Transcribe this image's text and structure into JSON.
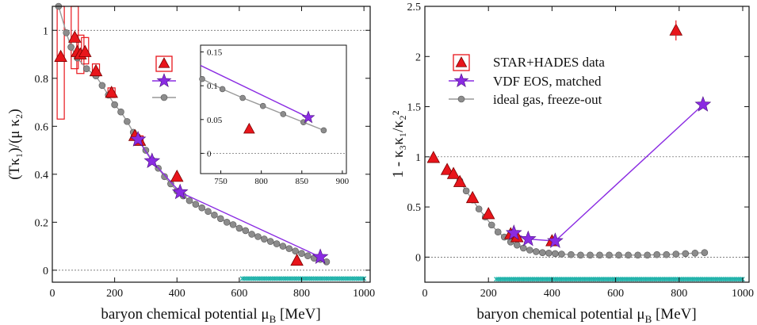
{
  "chart_data": [
    {
      "type": "scatter",
      "panel": "left",
      "xlabel_main": "baryon chemical potential μ",
      "xlabel_sub": "B",
      "xlabel_tail": " [MeV]",
      "ylabel": "(Tκ₁)/(μ κ₂)",
      "xlim": [
        0,
        1020
      ],
      "ylim": [
        -0.05,
        1.1
      ],
      "xticks": [
        0,
        200,
        400,
        600,
        800,
        1000
      ],
      "yticks": [
        0,
        0.2,
        0.4,
        0.6,
        0.8,
        1
      ],
      "ytick_labels": [
        "0",
        "0.2",
        "0.4",
        "0.6",
        "0.8",
        "1"
      ],
      "reference_lines": [
        0,
        1
      ],
      "legend": {
        "placement": "upper-middle",
        "labels_printed": false
      },
      "series": [
        {
          "role": "data",
          "marker": "triangle",
          "color": "#e8151b",
          "points": [
            [
              27,
              0.89
            ],
            [
              72,
              0.97
            ],
            [
              80,
              0.91
            ],
            [
              90,
              0.9
            ],
            [
              105,
              0.91
            ],
            [
              140,
              0.83
            ],
            [
              190,
              0.74
            ],
            [
              265,
              0.56
            ],
            [
              280,
              0.54
            ],
            [
              400,
              0.39
            ],
            [
              785,
              0.04
            ]
          ],
          "sys_boxes": [
            [
              27,
              0.63,
              1.1
            ],
            [
              72,
              0.84,
              1.1
            ],
            [
              90,
              0.82,
              0.98
            ],
            [
              105,
              0.86,
              0.97
            ],
            [
              140,
              0.81,
              0.86
            ],
            [
              190,
              0.72,
              0.76
            ],
            [
              265,
              0.55,
              0.57
            ],
            [
              280,
              0.53,
              0.56
            ]
          ]
        },
        {
          "role": "model",
          "marker": "star",
          "color": "#8a2be2",
          "points": [
            [
              275,
              0.545
            ],
            [
              320,
              0.455
            ],
            [
              410,
              0.325
            ],
            [
              860,
              0.055
            ]
          ]
        },
        {
          "role": "curve",
          "marker": "circle",
          "color": "#8c8c8c",
          "points": [
            [
              20,
              1.1
            ],
            [
              45,
              0.99
            ],
            [
              60,
              0.93
            ],
            [
              80,
              0.885
            ],
            [
              110,
              0.84
            ],
            [
              140,
              0.81
            ],
            [
              160,
              0.77
            ],
            [
              180,
              0.73
            ],
            [
              200,
              0.69
            ],
            [
              220,
              0.66
            ],
            [
              240,
              0.62
            ],
            [
              260,
              0.575
            ],
            [
              280,
              0.535
            ],
            [
              300,
              0.5
            ],
            [
              320,
              0.46
            ],
            [
              340,
              0.425
            ],
            [
              360,
              0.39
            ],
            [
              380,
              0.36
            ],
            [
              400,
              0.33
            ],
            [
              420,
              0.31
            ],
            [
              440,
              0.29
            ],
            [
              460,
              0.275
            ],
            [
              480,
              0.26
            ],
            [
              500,
              0.245
            ],
            [
              520,
              0.23
            ],
            [
              540,
              0.215
            ],
            [
              560,
              0.2
            ],
            [
              580,
              0.19
            ],
            [
              600,
              0.175
            ],
            [
              620,
              0.165
            ],
            [
              640,
              0.15
            ],
            [
              660,
              0.14
            ],
            [
              680,
              0.13
            ],
            [
              700,
              0.12
            ],
            [
              720,
              0.11
            ],
            [
              740,
              0.1
            ],
            [
              760,
              0.09
            ],
            [
              780,
              0.08
            ],
            [
              800,
              0.07
            ],
            [
              820,
              0.06
            ],
            [
              840,
              0.05
            ],
            [
              860,
              0.045
            ],
            [
              880,
              0.035
            ]
          ]
        },
        {
          "role": "band",
          "marker": "cross",
          "color": "#20b2aa",
          "x_range": [
            610,
            1000
          ],
          "y": -0.035
        }
      ],
      "inset": {
        "xlim": [
          725,
          905
        ],
        "ylim": [
          -0.03,
          0.16
        ],
        "xticks": [
          750,
          800,
          850,
          900
        ],
        "yticks": [
          0,
          0.05,
          0.1,
          0.15
        ],
        "ytick_labels": [
          "0",
          "0.05",
          "0.1",
          "0.15"
        ],
        "data_point": [
          785,
          0.036
        ],
        "model_line": [
          [
            725,
            0.13
          ],
          [
            858,
            0.053
          ]
        ],
        "model_star": [
          858,
          0.053
        ],
        "curve_points": [
          [
            727,
            0.11
          ],
          [
            752,
            0.095
          ],
          [
            777,
            0.082
          ],
          [
            802,
            0.07
          ],
          [
            827,
            0.058
          ],
          [
            852,
            0.046
          ],
          [
            877,
            0.034
          ]
        ]
      }
    },
    {
      "type": "scatter",
      "panel": "right",
      "xlabel_main": "baryon chemical potential μ",
      "xlabel_sub": "B",
      "xlabel_tail": " [MeV]",
      "ylabel": "1 - κ₃κ₁/κ₂²",
      "xlim": [
        0,
        1020
      ],
      "ylim": [
        -0.25,
        2.5
      ],
      "xticks": [
        0,
        200,
        400,
        600,
        800,
        1000
      ],
      "yticks": [
        0,
        0.5,
        1,
        1.5,
        2,
        2.5
      ],
      "ytick_labels": [
        "0",
        "0.5",
        "1",
        "1.5",
        "2",
        "2.5"
      ],
      "reference_lines": [
        0,
        1
      ],
      "legend": {
        "placement": "upper-left",
        "entries": [
          "STAR+HADES data",
          "VDF EOS, matched",
          "ideal gas, freeze-out"
        ]
      },
      "series": [
        {
          "role": "data",
          "name": "STAR+HADES data",
          "marker": "triangle",
          "color": "#e8151b",
          "points": [
            [
              27,
              0.99
            ],
            [
              70,
              0.87
            ],
            [
              90,
              0.83
            ],
            [
              110,
              0.75
            ],
            [
              150,
              0.59
            ],
            [
              200,
              0.43
            ],
            [
              270,
              0.23
            ],
            [
              290,
              0.2
            ],
            [
              400,
              0.16
            ],
            [
              790,
              2.26
            ]
          ]
        },
        {
          "name": "VDF EOS, matched",
          "role": "model",
          "marker": "star",
          "color": "#8a2be2",
          "points": [
            [
              280,
              0.24
            ],
            [
              325,
              0.18
            ],
            [
              410,
              0.16
            ],
            [
              875,
              1.52
            ]
          ]
        },
        {
          "name": "ideal gas, freeze-out",
          "role": "curve",
          "marker": "circle",
          "color": "#8c8c8c",
          "points": [
            [
              110,
              0.76
            ],
            [
              130,
              0.66
            ],
            [
              150,
              0.57
            ],
            [
              170,
              0.48
            ],
            [
              190,
              0.4
            ],
            [
              210,
              0.32
            ],
            [
              230,
              0.25
            ],
            [
              250,
              0.2
            ],
            [
              270,
              0.15
            ],
            [
              290,
              0.12
            ],
            [
              310,
              0.09
            ],
            [
              330,
              0.07
            ],
            [
              350,
              0.055
            ],
            [
              370,
              0.045
            ],
            [
              390,
              0.04
            ],
            [
              410,
              0.035
            ],
            [
              430,
              0.03
            ],
            [
              460,
              0.025
            ],
            [
              490,
              0.02
            ],
            [
              520,
              0.02
            ],
            [
              550,
              0.02
            ],
            [
              580,
              0.02
            ],
            [
              610,
              0.02
            ],
            [
              640,
              0.02
            ],
            [
              670,
              0.02
            ],
            [
              700,
              0.02
            ],
            [
              730,
              0.025
            ],
            [
              760,
              0.025
            ],
            [
              790,
              0.03
            ],
            [
              820,
              0.035
            ],
            [
              850,
              0.04
            ],
            [
              880,
              0.045
            ]
          ]
        },
        {
          "role": "band",
          "marker": "cross",
          "color": "#20b2aa",
          "x_range": [
            225,
            1000
          ],
          "y": -0.22
        }
      ]
    }
  ]
}
